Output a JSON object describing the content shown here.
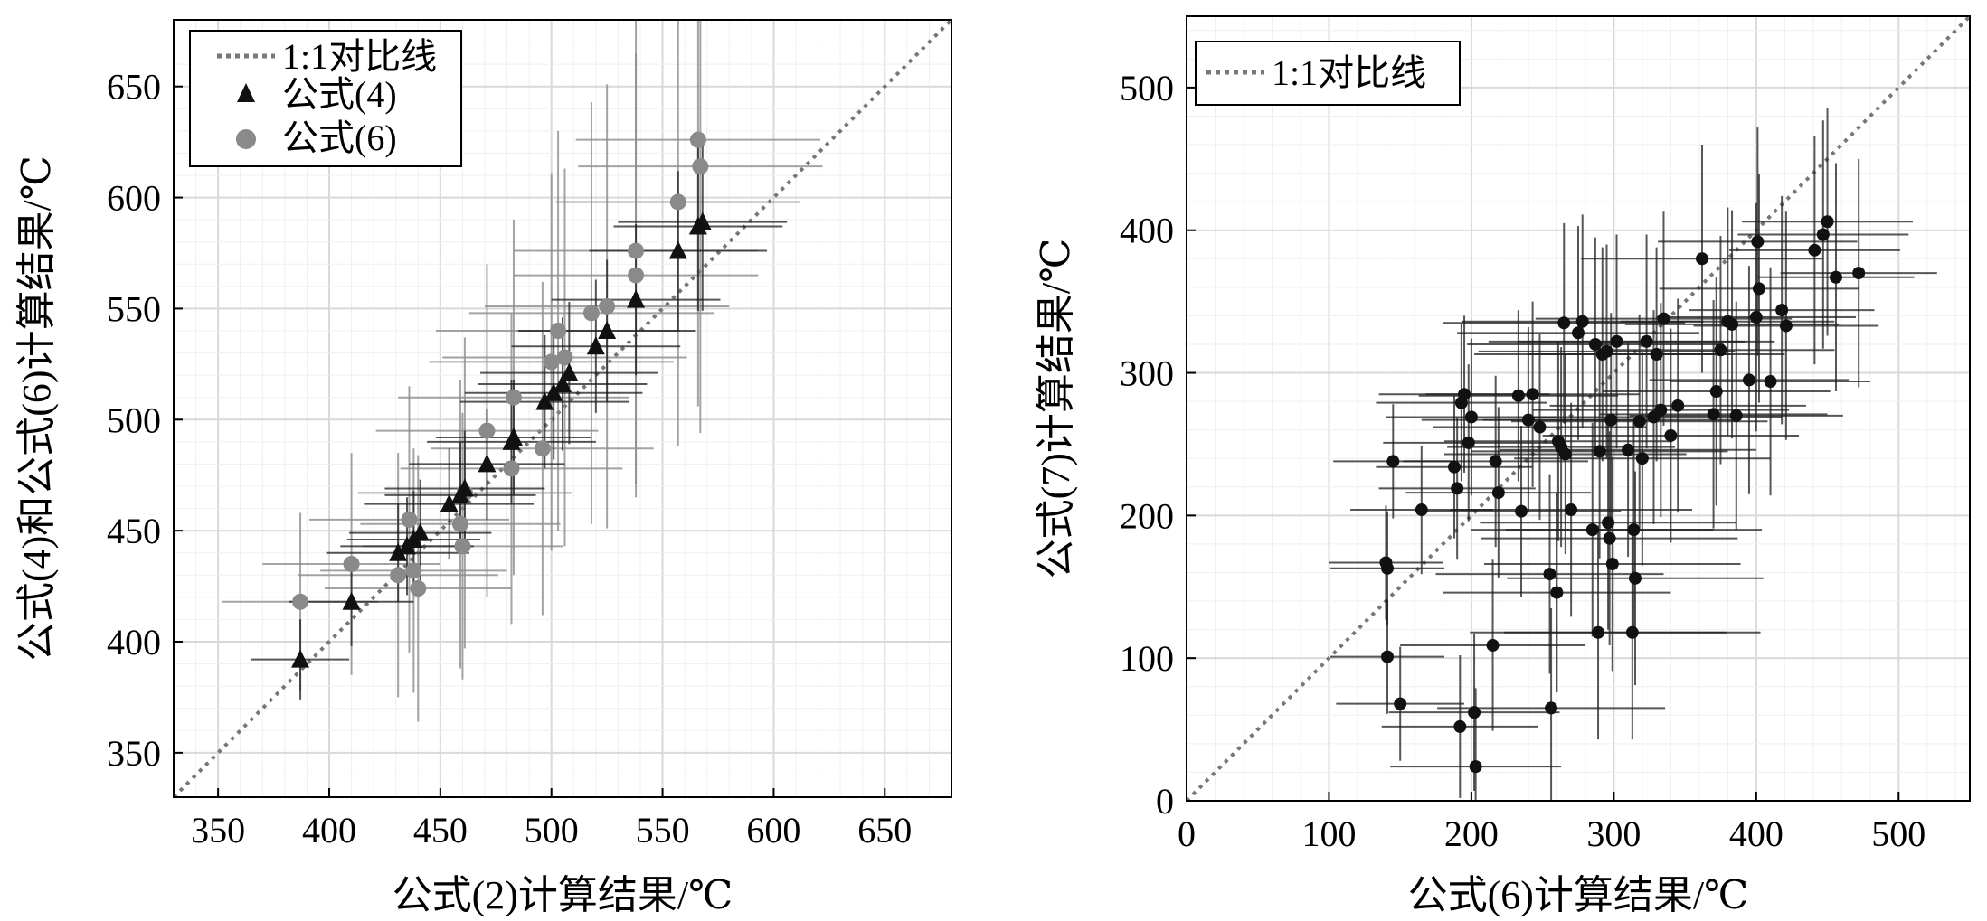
{
  "chart_data": [
    {
      "type": "scatter",
      "xlabel": "公式(2)计算结果/℃",
      "ylabel": "公式(4)和公式(6)计算结果/℃",
      "xlim": [
        330,
        680
      ],
      "ylim": [
        330,
        680
      ],
      "xticks": [
        350,
        400,
        450,
        500,
        550,
        600,
        650
      ],
      "yticks": [
        350,
        400,
        450,
        500,
        550,
        600,
        650
      ],
      "grid": true,
      "legend_position": "top-left",
      "reference_line": {
        "name": "1:1对比线",
        "style": "dotted",
        "color": "#777777"
      },
      "series": [
        {
          "name": "公式(4)",
          "marker": "triangle",
          "color": "#111111",
          "points": [
            [
              387,
              392
            ],
            [
              410,
              418
            ],
            [
              431,
              440
            ],
            [
              435,
              443
            ],
            [
              438,
              446
            ],
            [
              441,
              449
            ],
            [
              454,
              462
            ],
            [
              459,
              466
            ],
            [
              461,
              469
            ],
            [
              471,
              480
            ],
            [
              482,
              490
            ],
            [
              483,
              492
            ],
            [
              497,
              508
            ],
            [
              501,
              512
            ],
            [
              505,
              516
            ],
            [
              508,
              521
            ],
            [
              520,
              533
            ],
            [
              525,
              540
            ],
            [
              538,
              554
            ],
            [
              557,
              576
            ],
            [
              566,
              587
            ],
            [
              568,
              589
            ]
          ],
          "xerr": [
            22,
            28,
            32,
            30,
            30,
            32,
            38,
            34,
            36,
            35,
            38,
            35,
            38,
            40,
            38,
            40,
            38,
            40,
            38,
            40,
            38,
            38
          ],
          "yerr": [
            18,
            20,
            22,
            22,
            22,
            24,
            25,
            24,
            26,
            25,
            28,
            26,
            30,
            30,
            30,
            32,
            30,
            32,
            34,
            36,
            38,
            40
          ]
        },
        {
          "name": "公式(6)",
          "marker": "circle",
          "color": "#8a8a8a",
          "points": [
            [
              387,
              418
            ],
            [
              410,
              435
            ],
            [
              431,
              430
            ],
            [
              436,
              455
            ],
            [
              438,
              432
            ],
            [
              440,
              424
            ],
            [
              459,
              453
            ],
            [
              460,
              443
            ],
            [
              461,
              467
            ],
            [
              471,
              495
            ],
            [
              482,
              478
            ],
            [
              483,
              510
            ],
            [
              496,
              487
            ],
            [
              500,
              526
            ],
            [
              503,
              540
            ],
            [
              506,
              528
            ],
            [
              518,
              548
            ],
            [
              525,
              551
            ],
            [
              538,
              565
            ],
            [
              538,
              576
            ],
            [
              557,
              598
            ],
            [
              566,
              626
            ],
            [
              567,
              614
            ]
          ],
          "xerr": [
            35,
            40,
            45,
            45,
            42,
            42,
            45,
            45,
            48,
            50,
            50,
            52,
            50,
            55,
            55,
            55,
            55,
            55,
            55,
            55,
            55,
            55,
            55
          ],
          "yerr": [
            40,
            50,
            55,
            60,
            55,
            60,
            65,
            60,
            70,
            75,
            70,
            80,
            75,
            85,
            90,
            85,
            95,
            100,
            100,
            105,
            110,
            120,
            120
          ]
        }
      ]
    },
    {
      "type": "scatter",
      "xlabel": "公式(6)计算结果/℃",
      "ylabel": "公式(7)计算结果/℃",
      "xlim": [
        0,
        550
      ],
      "ylim": [
        0,
        550
      ],
      "xticks": [
        0,
        100,
        200,
        300,
        400,
        500
      ],
      "yticks": [
        0,
        100,
        200,
        300,
        400,
        500
      ],
      "grid": true,
      "legend_position": "top-left",
      "reference_line": {
        "name": "1:1对比线",
        "style": "dotted",
        "color": "#777777"
      },
      "series": [
        {
          "name": "",
          "marker": "circle",
          "color": "#111111",
          "points": [
            [
              140,
              167
            ],
            [
              141,
              101
            ],
            [
              141,
              163
            ],
            [
              145,
              238
            ],
            [
              150,
              68
            ],
            [
              165,
              204
            ],
            [
              188,
              234
            ],
            [
              190,
              219
            ],
            [
              192,
              52
            ],
            [
              193,
              279
            ],
            [
              195,
              285
            ],
            [
              198,
              251
            ],
            [
              200,
              269
            ],
            [
              202,
              62
            ],
            [
              203,
              24
            ],
            [
              215,
              109
            ],
            [
              217,
              238
            ],
            [
              219,
              216
            ],
            [
              233,
              284
            ],
            [
              235,
              203
            ],
            [
              240,
              267
            ],
            [
              243,
              285
            ],
            [
              248,
              262
            ],
            [
              255,
              159
            ],
            [
              256,
              65
            ],
            [
              260,
              146
            ],
            [
              261,
              252
            ],
            [
              263,
              248
            ],
            [
              265,
              335
            ],
            [
              266,
              243
            ],
            [
              270,
              204
            ],
            [
              275,
              328
            ],
            [
              278,
              336
            ],
            [
              285,
              190
            ],
            [
              287,
              320
            ],
            [
              289,
              118
            ],
            [
              290,
              245
            ],
            [
              292,
              313
            ],
            [
              295,
              315
            ],
            [
              296,
              195
            ],
            [
              297,
              184
            ],
            [
              298,
              267
            ],
            [
              299,
              166
            ],
            [
              302,
              322
            ],
            [
              310,
              246
            ],
            [
              313,
              118
            ],
            [
              314,
              190
            ],
            [
              315,
              156
            ],
            [
              318,
              266
            ],
            [
              320,
              240
            ],
            [
              323,
              322
            ],
            [
              328,
              269
            ],
            [
              330,
              313
            ],
            [
              333,
              274
            ],
            [
              335,
              338
            ],
            [
              340,
              256
            ],
            [
              345,
              277
            ],
            [
              362,
              380
            ],
            [
              370,
              271
            ],
            [
              372,
              287
            ],
            [
              375,
              316
            ],
            [
              380,
              336
            ],
            [
              383,
              334
            ],
            [
              386,
              270
            ],
            [
              395,
              295
            ],
            [
              400,
              339
            ],
            [
              401,
              392
            ],
            [
              402,
              359
            ],
            [
              410,
              294
            ],
            [
              418,
              344
            ],
            [
              421,
              333
            ],
            [
              441,
              386
            ],
            [
              447,
              397
            ],
            [
              450,
              406
            ],
            [
              456,
              367
            ],
            [
              472,
              370
            ]
          ],
          "xerr": [
            40,
            40,
            40,
            42,
            45,
            50,
            55,
            55,
            55,
            60,
            60,
            60,
            60,
            60,
            60,
            65,
            65,
            65,
            70,
            70,
            75,
            75,
            75,
            80,
            80,
            80,
            80,
            80,
            85,
            85,
            85,
            85,
            85,
            85,
            90,
            90,
            90,
            90,
            90,
            90,
            90,
            90,
            90,
            90,
            90,
            90,
            90,
            90,
            90,
            90,
            90,
            90,
            90,
            90,
            90,
            90,
            90,
            85,
            80,
            80,
            80,
            75,
            75,
            75,
            70,
            70,
            70,
            70,
            70,
            65,
            65,
            60,
            60,
            60,
            55,
            55
          ],
          "yerr": [
            40,
            40,
            40,
            40,
            40,
            45,
            50,
            50,
            50,
            55,
            55,
            55,
            55,
            55,
            55,
            60,
            60,
            60,
            60,
            60,
            65,
            65,
            65,
            70,
            70,
            70,
            70,
            70,
            70,
            70,
            75,
            75,
            75,
            75,
            75,
            75,
            75,
            75,
            75,
            75,
            75,
            75,
            75,
            75,
            75,
            75,
            75,
            75,
            75,
            75,
            75,
            75,
            75,
            75,
            75,
            75,
            75,
            80,
            80,
            80,
            80,
            80,
            80,
            80,
            80,
            80,
            80,
            80,
            80,
            80,
            80,
            80,
            80,
            80,
            80,
            80
          ]
        }
      ]
    }
  ]
}
